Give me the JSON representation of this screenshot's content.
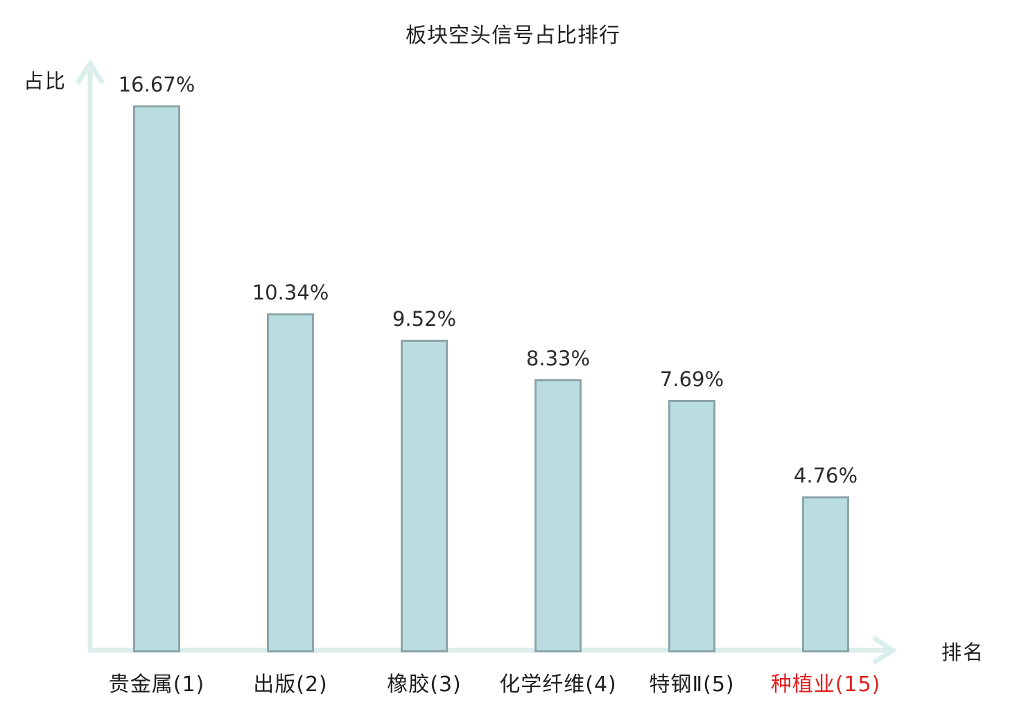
{
  "chart_data": {
    "type": "bar",
    "title": "板块空头信号占比排行",
    "xlabel": "排名",
    "ylabel": "占比",
    "categories": [
      "贵金属(1)",
      "出版(2)",
      "橡胶(3)",
      "化学纤维(4)",
      "特钢Ⅱ(5)",
      "种植业(15)"
    ],
    "values": [
      16.67,
      10.34,
      9.52,
      8.33,
      7.69,
      4.76
    ],
    "value_labels": [
      "16.67%",
      "10.34%",
      "9.52%",
      "8.33%",
      "7.69%",
      "4.76%"
    ],
    "ylim": [
      0,
      18
    ],
    "grid": false,
    "legend": false,
    "highlight_index": 5
  },
  "colors": {
    "bar_fill": "#b9dde1",
    "bar_border": "#8da5a9",
    "axis": "#daeeec",
    "text": "#1f1f1f",
    "value_text": "#2b2b2b",
    "highlight_text": "#e02020",
    "background": "#ffffff"
  }
}
